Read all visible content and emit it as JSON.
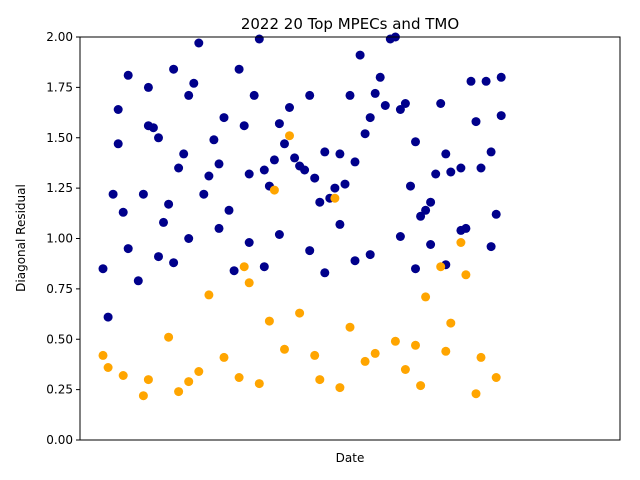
{
  "chart_data": {
    "type": "scatter",
    "title": "2022 20 Top MPECs and TMO",
    "xlabel": "Date",
    "ylabel": "Diagonal Residual",
    "ylim": [
      0,
      2.0
    ],
    "yticks": [
      "0.00",
      "0.25",
      "0.50",
      "0.75",
      "1.00",
      "1.25",
      "1.50",
      "1.75",
      "2.00"
    ],
    "xticks_visible": false,
    "grid": false,
    "series": [
      {
        "color": "#00008b",
        "points": [
          [
            0.01,
            0.85
          ],
          [
            0.02,
            0.61
          ],
          [
            0.03,
            1.22
          ],
          [
            0.04,
            1.47
          ],
          [
            0.04,
            1.64
          ],
          [
            0.05,
            1.13
          ],
          [
            0.06,
            1.81
          ],
          [
            0.08,
            0.79
          ],
          [
            0.09,
            1.22
          ],
          [
            0.1,
            1.56
          ],
          [
            0.1,
            1.75
          ],
          [
            0.11,
            1.55
          ],
          [
            0.12,
            1.5
          ],
          [
            0.13,
            1.08
          ],
          [
            0.14,
            1.17
          ],
          [
            0.15,
            1.84
          ],
          [
            0.16,
            1.35
          ],
          [
            0.17,
            1.42
          ],
          [
            0.18,
            1.71
          ],
          [
            0.19,
            1.77
          ],
          [
            0.2,
            1.97
          ],
          [
            0.21,
            1.22
          ],
          [
            0.22,
            1.31
          ],
          [
            0.23,
            1.49
          ],
          [
            0.24,
            1.37
          ],
          [
            0.25,
            1.6
          ],
          [
            0.26,
            1.14
          ],
          [
            0.28,
            1.84
          ],
          [
            0.29,
            1.56
          ],
          [
            0.3,
            1.32
          ],
          [
            0.31,
            1.71
          ],
          [
            0.32,
            1.99
          ],
          [
            0.33,
            1.34
          ],
          [
            0.34,
            1.26
          ],
          [
            0.35,
            1.39
          ],
          [
            0.36,
            1.57
          ],
          [
            0.37,
            1.47
          ],
          [
            0.38,
            1.65
          ],
          [
            0.39,
            1.4
          ],
          [
            0.4,
            1.36
          ],
          [
            0.41,
            1.34
          ],
          [
            0.42,
            1.71
          ],
          [
            0.43,
            1.3
          ],
          [
            0.44,
            1.18
          ],
          [
            0.45,
            1.43
          ],
          [
            0.46,
            1.2
          ],
          [
            0.47,
            1.25
          ],
          [
            0.48,
            1.42
          ],
          [
            0.49,
            1.27
          ],
          [
            0.5,
            1.71
          ],
          [
            0.51,
            1.38
          ],
          [
            0.52,
            1.91
          ],
          [
            0.53,
            1.52
          ],
          [
            0.54,
            1.6
          ],
          [
            0.55,
            1.72
          ],
          [
            0.56,
            1.8
          ],
          [
            0.57,
            1.66
          ],
          [
            0.58,
            1.99
          ],
          [
            0.59,
            2.0
          ],
          [
            0.6,
            1.64
          ],
          [
            0.61,
            1.67
          ],
          [
            0.62,
            1.26
          ],
          [
            0.63,
            1.48
          ],
          [
            0.64,
            1.11
          ],
          [
            0.65,
            1.14
          ],
          [
            0.66,
            1.18
          ],
          [
            0.67,
            1.32
          ],
          [
            0.68,
            1.67
          ],
          [
            0.69,
            1.42
          ],
          [
            0.7,
            1.33
          ],
          [
            0.72,
            1.35
          ],
          [
            0.73,
            1.05
          ],
          [
            0.74,
            1.78
          ],
          [
            0.75,
            1.58
          ],
          [
            0.76,
            1.35
          ],
          [
            0.77,
            1.78
          ],
          [
            0.78,
            1.43
          ],
          [
            0.79,
            1.12
          ],
          [
            0.8,
            1.61
          ],
          [
            0.8,
            1.8
          ],
          [
            0.06,
            0.95
          ],
          [
            0.12,
            0.91
          ],
          [
            0.18,
            1.0
          ],
          [
            0.24,
            1.05
          ],
          [
            0.3,
            0.98
          ],
          [
            0.36,
            1.02
          ],
          [
            0.42,
            0.94
          ],
          [
            0.48,
            1.07
          ],
          [
            0.54,
            0.92
          ],
          [
            0.6,
            1.01
          ],
          [
            0.66,
            0.97
          ],
          [
            0.72,
            1.04
          ],
          [
            0.78,
            0.96
          ],
          [
            0.15,
            0.88
          ],
          [
            0.33,
            0.86
          ],
          [
            0.51,
            0.89
          ],
          [
            0.69,
            0.87
          ],
          [
            0.27,
            0.84
          ],
          [
            0.45,
            0.83
          ],
          [
            0.63,
            0.85
          ]
        ]
      },
      {
        "color": "#ffa500",
        "points": [
          [
            0.01,
            0.42
          ],
          [
            0.02,
            0.36
          ],
          [
            0.05,
            0.32
          ],
          [
            0.09,
            0.22
          ],
          [
            0.14,
            0.51
          ],
          [
            0.18,
            0.29
          ],
          [
            0.22,
            0.72
          ],
          [
            0.25,
            0.41
          ],
          [
            0.29,
            0.86
          ],
          [
            0.3,
            0.78
          ],
          [
            0.34,
            0.59
          ],
          [
            0.35,
            1.24
          ],
          [
            0.38,
            1.51
          ],
          [
            0.4,
            0.63
          ],
          [
            0.43,
            0.42
          ],
          [
            0.47,
            1.2
          ],
          [
            0.5,
            0.56
          ],
          [
            0.55,
            0.43
          ],
          [
            0.59,
            0.49
          ],
          [
            0.63,
            0.47
          ],
          [
            0.65,
            0.71
          ],
          [
            0.68,
            0.86
          ],
          [
            0.7,
            0.58
          ],
          [
            0.72,
            0.98
          ],
          [
            0.73,
            0.82
          ],
          [
            0.76,
            0.41
          ],
          [
            0.79,
            0.31
          ],
          [
            0.1,
            0.3
          ],
          [
            0.2,
            0.34
          ],
          [
            0.28,
            0.31
          ],
          [
            0.37,
            0.45
          ],
          [
            0.44,
            0.3
          ],
          [
            0.53,
            0.39
          ],
          [
            0.61,
            0.35
          ],
          [
            0.69,
            0.44
          ],
          [
            0.16,
            0.24
          ],
          [
            0.32,
            0.28
          ],
          [
            0.48,
            0.26
          ],
          [
            0.64,
            0.27
          ],
          [
            0.75,
            0.23
          ]
        ]
      }
    ]
  }
}
